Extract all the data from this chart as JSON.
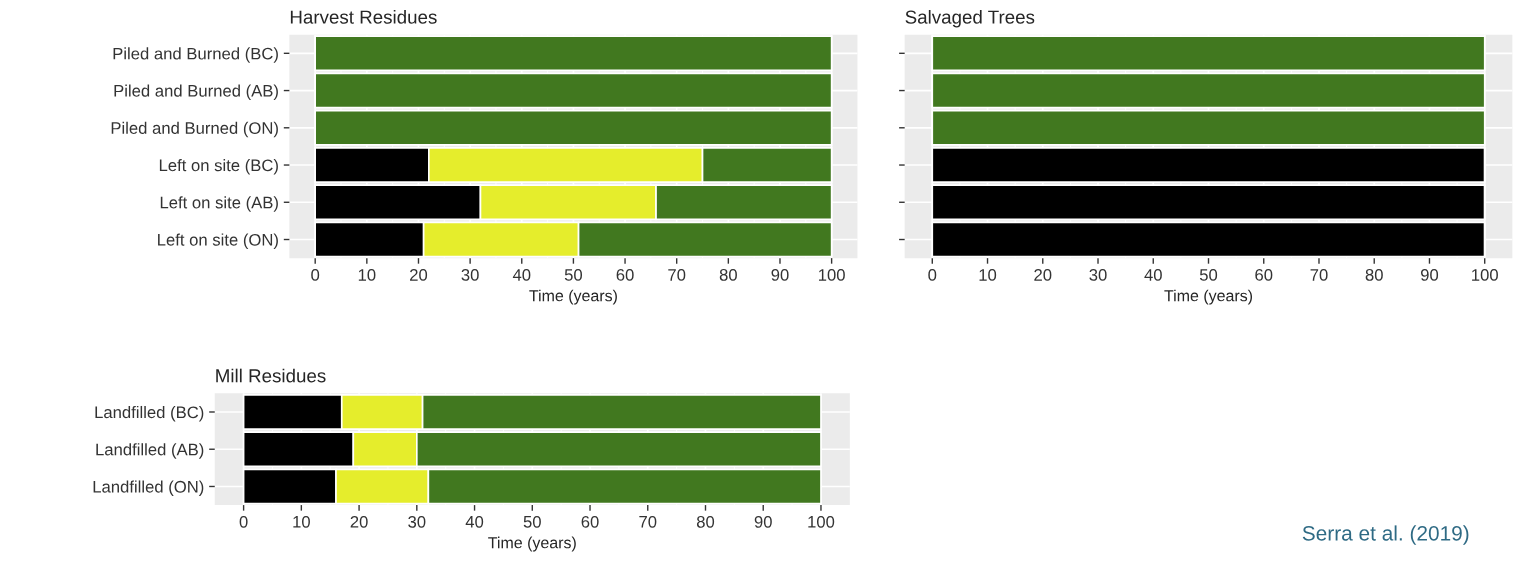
{
  "chart_data": [
    {
      "type": "bar",
      "title": "Harvest Residues",
      "xlabel": "Time (years)",
      "orientation": "horizontal",
      "stacked": true,
      "grid": true,
      "categories": [
        "Piled and Burned (BC)",
        "Piled and Burned (AB)",
        "Piled and Burned (ON)",
        "Left on site (BC)",
        "Left on site (AB)",
        "Left on site (ON)"
      ],
      "xlim": [
        -5,
        105
      ],
      "xticks": [
        0,
        10,
        20,
        30,
        40,
        50,
        60,
        70,
        80,
        90,
        100
      ],
      "series": [
        {
          "color": "#000000",
          "values": [
            0,
            0,
            0,
            22,
            32,
            21
          ]
        },
        {
          "color": "#e5ed2c",
          "values": [
            0,
            0,
            0,
            53,
            34,
            30
          ]
        },
        {
          "color": "#41781f",
          "values": [
            100,
            100,
            100,
            25,
            34,
            49
          ]
        }
      ]
    },
    {
      "type": "bar",
      "title": "Salvaged Trees",
      "xlabel": "Time (years)",
      "orientation": "horizontal",
      "stacked": true,
      "grid": true,
      "tick_labels": "x",
      "categories": [
        null,
        null,
        null,
        null,
        null,
        null
      ],
      "xlim": [
        -5,
        105
      ],
      "xticks": [
        0,
        10,
        20,
        30,
        40,
        50,
        60,
        70,
        80,
        90,
        100
      ],
      "series": [
        {
          "color": "#000000",
          "values": [
            0,
            0,
            0,
            100,
            100,
            100
          ]
        },
        {
          "color": "#e5ed2c",
          "values": [
            0,
            0,
            0,
            0,
            0,
            0
          ]
        },
        {
          "color": "#41781f",
          "values": [
            100,
            100,
            100,
            0,
            0,
            0
          ]
        }
      ]
    },
    {
      "type": "bar",
      "title": "Mill Residues",
      "xlabel": "Time (years)",
      "orientation": "horizontal",
      "stacked": true,
      "grid": true,
      "categories": [
        "Landfilled (BC)",
        "Landfilled (AB)",
        "Landfilled (ON)"
      ],
      "xlim": [
        -5,
        105
      ],
      "xticks": [
        0,
        10,
        20,
        30,
        40,
        50,
        60,
        70,
        80,
        90,
        100
      ],
      "annotations": [
        "Serra et al. (2019)"
      ],
      "series": [
        {
          "color": "#000000",
          "values": [
            17,
            19,
            16
          ]
        },
        {
          "color": "#e5ed2c",
          "values": [
            14,
            11,
            16
          ]
        },
        {
          "color": "#41781f",
          "values": [
            69,
            70,
            68
          ]
        }
      ]
    }
  ]
}
